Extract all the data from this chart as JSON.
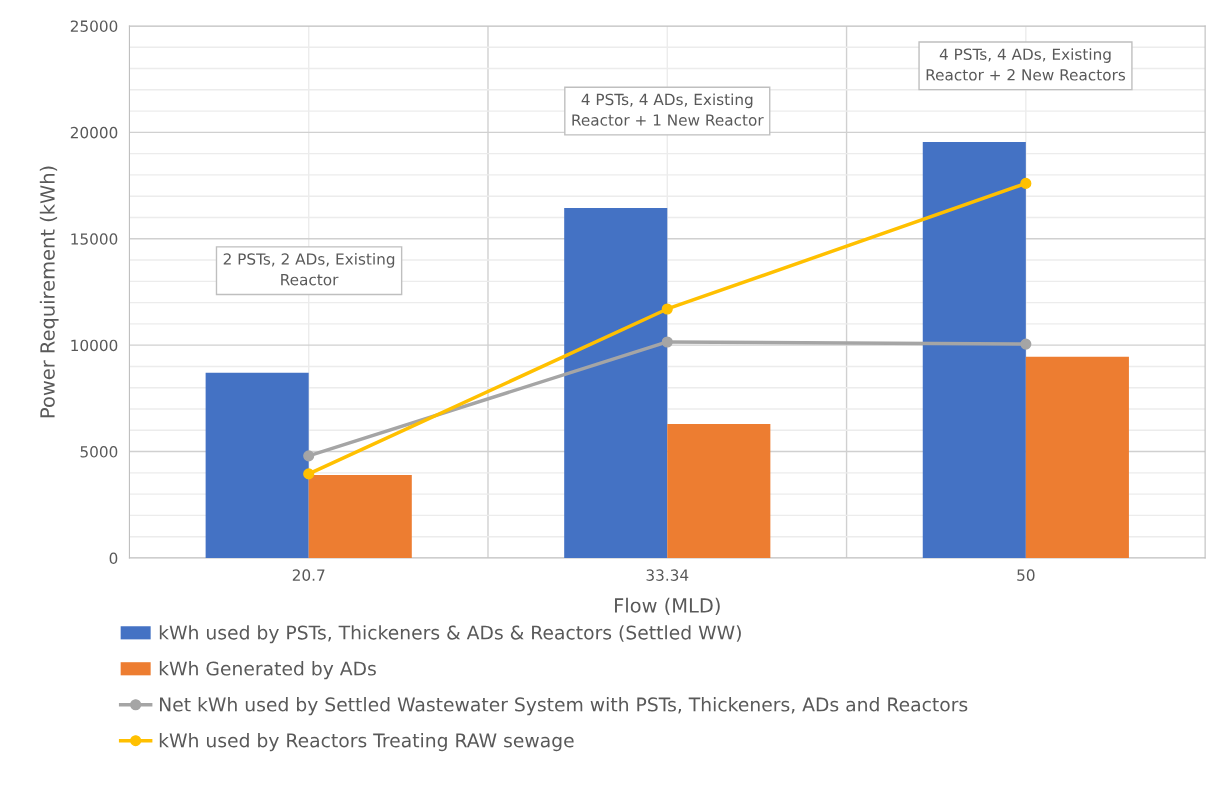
{
  "chart_data": {
    "type": "bar",
    "xlabel": "Flow (MLD)",
    "ylabel": "Power Requirement (kWh)",
    "categories": [
      "20.7",
      "33.34",
      "50"
    ],
    "series": [
      {
        "name": "kWh used by PSTs, Thickeners & ADs & Reactors (Settled WW)",
        "color": "#4472c4",
        "values": [
          8700,
          16450,
          19550
        ]
      },
      {
        "name": "kWh Generated by ADs",
        "color": "#ed7d31",
        "values": [
          3900,
          6300,
          9450
        ]
      },
      {
        "name": "Net kWh used by Settled Wastewater System with PSTs, Thickeners, ADs and Reactors",
        "type": "line",
        "color": "#a5a5a5",
        "values": [
          4800,
          10150,
          10050
        ]
      },
      {
        "name": "kWh used by Reactors Treating RAW sewage",
        "type": "line",
        "color": "#ffc000",
        "values": [
          3950,
          11700,
          17600
        ]
      }
    ],
    "ylim": [
      0,
      25000
    ],
    "yticks": [
      0,
      5000,
      10000,
      15000,
      20000,
      25000
    ],
    "grid": true,
    "legend": "bottom",
    "marker": "circle",
    "line_style": "solid",
    "annotations": [
      "2 PSTs, 2 ADs, Existing\nReactor",
      "4 PSTs, 4 ADs, Existing\nReactor + 1 New Reactor",
      "4 PSTs, 4 ADs, Existing\nReactor + 2 New Reactors"
    ]
  }
}
